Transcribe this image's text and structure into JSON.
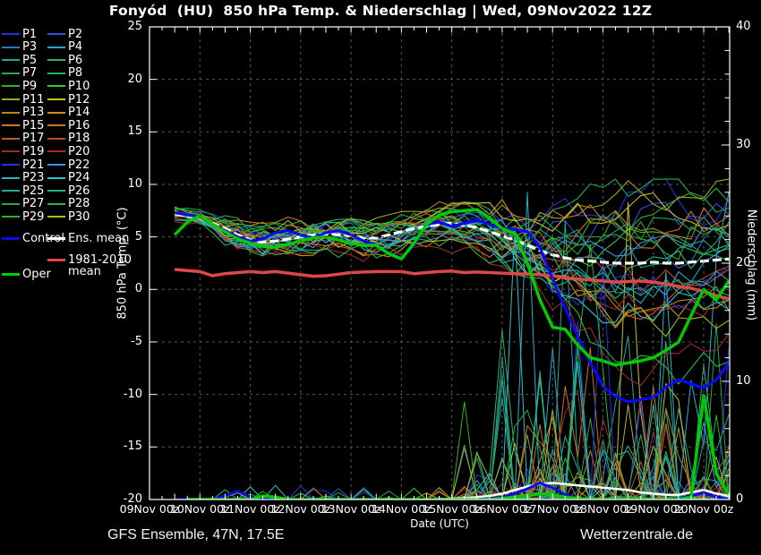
{
  "title": "Fonyód  (HU)  850 hPa Temp. & Niederschlag | Wed, 09Nov2022 12Z",
  "footer": {
    "left": "GFS Ensemble, 47N, 17.5E",
    "right": "Wetterzentrale.de"
  },
  "axes": {
    "left": {
      "label": "850 hPa Temp. (°C)",
      "ticks": [
        25,
        20,
        15,
        10,
        5,
        0,
        -5,
        -10,
        -15,
        -20
      ],
      "range": [
        -20,
        25
      ]
    },
    "right": {
      "label": "Niederschlag (mm)",
      "ticks": [
        40,
        30,
        20,
        10,
        0
      ],
      "range": [
        0,
        40
      ]
    },
    "bottom": {
      "label": "Date (UTC)",
      "ticks": [
        "09Nov 00z",
        "10Nov 00z",
        "11Nov 00z",
        "12Nov 00z",
        "13Nov 00z",
        "14Nov 00z",
        "15Nov 00z",
        "16Nov 00z",
        "17Nov 00z",
        "18Nov 00z",
        "19Nov 00z",
        "20Nov 00z"
      ]
    }
  },
  "legend": {
    "members": [
      {
        "label": "P1",
        "color": "#2830d8"
      },
      {
        "label": "P2",
        "color": "#3050e0"
      },
      {
        "label": "P3",
        "color": "#2878b8"
      },
      {
        "label": "P4",
        "color": "#28a8d0"
      },
      {
        "label": "P5",
        "color": "#20a898"
      },
      {
        "label": "P6",
        "color": "#28b478"
      },
      {
        "label": "P7",
        "color": "#28a455"
      },
      {
        "label": "P8",
        "color": "#20b04d"
      },
      {
        "label": "P9",
        "color": "#28b428"
      },
      {
        "label": "P10",
        "color": "#30cc30"
      },
      {
        "label": "P11",
        "color": "#a8a820"
      },
      {
        "label": "P12",
        "color": "#c4c428"
      },
      {
        "label": "P13",
        "color": "#b88818"
      },
      {
        "label": "P14",
        "color": "#c89020"
      },
      {
        "label": "P15",
        "color": "#c87828"
      },
      {
        "label": "P16",
        "color": "#c87818"
      },
      {
        "label": "P17",
        "color": "#c05828"
      },
      {
        "label": "P18",
        "color": "#c44820"
      },
      {
        "label": "P19",
        "color": "#a02828"
      },
      {
        "label": "P20",
        "color": "#a82828"
      },
      {
        "label": "P21",
        "color": "#2830d8"
      },
      {
        "label": "P22",
        "color": "#4090e8"
      },
      {
        "label": "P23",
        "color": "#28b0cc"
      },
      {
        "label": "P24",
        "color": "#28c4cc"
      },
      {
        "label": "P25",
        "color": "#20a898"
      },
      {
        "label": "P26",
        "color": "#28b478"
      },
      {
        "label": "P27",
        "color": "#28a455"
      },
      {
        "label": "P28",
        "color": "#28b448"
      },
      {
        "label": "P29",
        "color": "#28b428"
      },
      {
        "label": "P30",
        "color": "#b4b428"
      }
    ],
    "specials": {
      "control": {
        "label": "Control",
        "color": "#0a0aee"
      },
      "ens_mean": {
        "label": "Ens. mean",
        "color": "#ffffff"
      },
      "clim": {
        "label": "1981-2010 mean",
        "color": "#e04848"
      },
      "oper": {
        "label": "Oper",
        "color": "#00cc00"
      }
    }
  },
  "chart_data": {
    "type": "line",
    "title": "Fonyód (HU) 850 hPa Temp. & Niederschlag, GFS Ensemble run Wed 09Nov2022 12Z",
    "xlabel": "Date (UTC)",
    "ylabel_left": "850 hPa Temp. (°C)",
    "ylabel_right": "Niederschlag (mm)",
    "x_unit": "day of Nov 2022, UTC",
    "x_axis_range": [
      9.0,
      20.52
    ],
    "temp_axis_range": [
      -20,
      25
    ],
    "precip_axis_range": [
      0,
      40
    ],
    "grid": "dashed, every day vertical, every 5 °C horizontal",
    "legend_position": "outside-left",
    "x_start": 9.5,
    "x_step": 0.25,
    "n_points": 45,
    "day_gridlines": [
      10,
      11,
      12,
      13,
      14,
      15,
      16,
      17,
      18,
      19,
      20
    ],
    "series": {
      "ens_mean_temp": [
        7.2,
        7.0,
        6.8,
        6.3,
        5.8,
        5.2,
        4.7,
        4.5,
        4.6,
        4.8,
        5.0,
        5.2,
        5.3,
        5.2,
        5.1,
        4.9,
        4.9,
        5.2,
        5.5,
        5.8,
        6.0,
        6.2,
        6.3,
        6.1,
        5.9,
        5.5,
        5.1,
        4.7,
        4.2,
        3.7,
        3.3,
        3.0,
        2.8,
        2.7,
        2.6,
        2.5,
        2.5,
        2.5,
        2.6,
        2.5,
        2.5,
        2.6,
        2.7,
        2.8,
        2.9
      ],
      "control_temp": [
        7.3,
        7.1,
        6.9,
        6.2,
        5.6,
        5.0,
        4.6,
        4.8,
        5.4,
        5.6,
        5.2,
        4.9,
        5.4,
        5.6,
        5.2,
        4.6,
        4.2,
        3.4,
        3.0,
        4.2,
        6.2,
        6.4,
        6.0,
        6.3,
        6.6,
        6.2,
        5.8,
        5.7,
        5.5,
        4.0,
        1.0,
        -1.8,
        -4.5,
        -7.0,
        -9.2,
        -10.2,
        -10.7,
        -10.5,
        -10.3,
        -9.3,
        -8.6,
        -9.0,
        -9.4,
        -8.6,
        -7.0
      ],
      "oper_temp": [
        5.2,
        6.4,
        7.0,
        6.2,
        5.5,
        4.8,
        4.4,
        4.1,
        4.0,
        4.3,
        4.6,
        4.9,
        5.0,
        4.7,
        4.4,
        4.2,
        4.2,
        3.4,
        2.9,
        4.4,
        6.2,
        7.1,
        7.4,
        7.5,
        7.6,
        6.8,
        5.8,
        5.3,
        2.5,
        -1.0,
        -3.6,
        -3.8,
        -5.3,
        -6.5,
        -6.8,
        -7.2,
        -7.0,
        -6.8,
        -6.5,
        -5.8,
        -5.0,
        -2.5,
        0.0,
        -1.0,
        0.8
      ],
      "clim_1981_2010_temp": [
        1.9,
        1.8,
        1.7,
        1.3,
        1.5,
        1.6,
        1.7,
        1.6,
        1.7,
        1.55,
        1.4,
        1.25,
        1.3,
        1.45,
        1.6,
        1.65,
        1.7,
        1.7,
        1.7,
        1.5,
        1.6,
        1.7,
        1.75,
        1.6,
        1.65,
        1.6,
        1.55,
        1.5,
        1.45,
        1.4,
        1.3,
        1.1,
        1.0,
        0.9,
        0.8,
        0.7,
        0.75,
        0.8,
        0.7,
        0.5,
        0.3,
        0.1,
        -0.2,
        -0.6,
        -0.9
      ],
      "ens_mean_precip": [
        0,
        0,
        0,
        0,
        0,
        0,
        0,
        0,
        0,
        0,
        0,
        0,
        0,
        0,
        0,
        0,
        0,
        0,
        0,
        0,
        0,
        0,
        0.1,
        0.1,
        0.2,
        0.3,
        0.5,
        0.8,
        1.1,
        1.3,
        1.4,
        1.3,
        1.2,
        1.1,
        1.0,
        0.9,
        0.8,
        0.6,
        0.5,
        0.4,
        0.4,
        0.6,
        0.8,
        0.5,
        0.3
      ],
      "control_precip": [
        0,
        0,
        0,
        0,
        0.3,
        0.7,
        0.2,
        0,
        0,
        0,
        0,
        0,
        0,
        0,
        0,
        0,
        0,
        0,
        0,
        0,
        0,
        0,
        0,
        0,
        0,
        0.1,
        0.2,
        0.5,
        0.9,
        1.4,
        1.0,
        0.4,
        0.1,
        0,
        0,
        0,
        0,
        0,
        0,
        0,
        0.1,
        0.3,
        0.6,
        0.2,
        0
      ],
      "oper_precip": [
        null,
        0,
        0,
        0,
        0,
        0,
        0,
        0.3,
        0.2,
        0,
        0,
        0,
        0,
        0,
        0,
        0,
        0,
        0,
        0,
        0,
        0,
        0,
        0,
        0,
        0,
        0,
        0.1,
        0.2,
        0.3,
        0.5,
        0.4,
        0.2,
        0.1,
        0,
        0,
        0,
        0,
        0,
        0,
        0,
        0,
        0.2,
        8.8,
        2.2,
        0.4
      ]
    },
    "ensemble_members": {
      "count": 30,
      "note": "30 thin perturbation traces (colors = legend P1–P30); near 7 °C ±1 on 09Nov, spread ±2 °C to 15Nov, fanning to about -15…+8 °C after 17Nov; precipitation spikes up to ~26 mm between 16Nov and 20Nov; traces approximated procedurally around ens_mean_temp",
      "temp_spread_range_end": [
        -15,
        8
      ],
      "precip_spike_max_mm": 26
    }
  }
}
